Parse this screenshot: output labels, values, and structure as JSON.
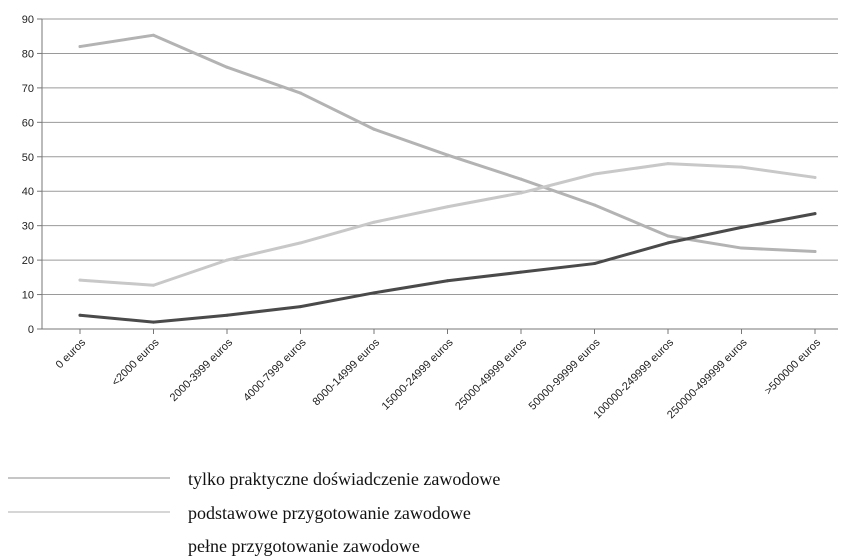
{
  "chart_data": {
    "type": "line",
    "categories": [
      "0 euros",
      "<2000 euros",
      "2000-3999 euros",
      "4000-7999 euros",
      "8000-14999 euros",
      "15000-24999 euros",
      "25000-49999 euros",
      "50000-99999 euros",
      "100000-249999 euros",
      "250000-499999 euros",
      ">500000 euros"
    ],
    "ylim": [
      0,
      90
    ],
    "yticks": [
      0,
      10,
      20,
      30,
      40,
      50,
      60,
      70,
      80,
      90
    ],
    "grid": true,
    "legend_position": "bottom",
    "series": [
      {
        "name": "tylko praktyczne doświadczenie zawodowe",
        "color": "#b3b3b3",
        "values": [
          82,
          85.3,
          76,
          68.5,
          58,
          50.5,
          43.5,
          36,
          27,
          23.5,
          22.5
        ]
      },
      {
        "name": "podstawowe przygotowanie zawodowe",
        "color": "#c8c8c8",
        "values": [
          14.2,
          12.7,
          20,
          25,
          31,
          35.5,
          39.5,
          45,
          48,
          47,
          44
        ]
      },
      {
        "name": "pełne przygotowanie zawodowe",
        "color": "#4a4a4a",
        "values": [
          4,
          2,
          4,
          6.5,
          10.5,
          14,
          16.5,
          19,
          25,
          29.5,
          33.5
        ]
      }
    ]
  }
}
